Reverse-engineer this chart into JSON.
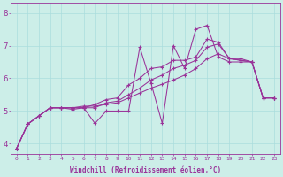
{
  "background_color": "#cceee8",
  "grid_color": "#aadddd",
  "line_color": "#993399",
  "xlabel": "Windchill (Refroidissement éolien,°C)",
  "xlabel_color": "#993399",
  "tick_color": "#993399",
  "xlim": [
    -0.5,
    23.5
  ],
  "ylim": [
    3.7,
    8.3
  ],
  "yticks": [
    4,
    5,
    6,
    7,
    8
  ],
  "xticks": [
    0,
    1,
    2,
    3,
    4,
    5,
    6,
    7,
    8,
    9,
    10,
    11,
    12,
    13,
    14,
    15,
    16,
    17,
    18,
    19,
    20,
    21,
    22,
    23
  ],
  "series": [
    {
      "x": [
        0,
        1,
        2,
        3,
        4,
        5,
        6,
        7,
        8,
        9,
        10,
        11,
        12,
        13,
        14,
        15,
        16,
        17,
        18,
        19,
        20,
        21,
        22,
        23
      ],
      "y": [
        3.85,
        4.6,
        4.85,
        5.1,
        5.1,
        5.05,
        5.1,
        4.62,
        5.0,
        5.0,
        5.0,
        6.95,
        5.85,
        4.62,
        7.0,
        6.3,
        7.5,
        7.62,
        6.65,
        6.5,
        6.5,
        6.5,
        5.4,
        5.4
      ]
    },
    {
      "x": [
        0,
        1,
        2,
        3,
        4,
        5,
        6,
        7,
        8,
        9,
        10,
        11,
        12,
        13,
        14,
        15,
        16,
        17,
        18,
        19,
        20,
        21,
        22,
        23
      ],
      "y": [
        3.85,
        4.6,
        4.85,
        5.1,
        5.1,
        5.1,
        5.1,
        5.2,
        5.35,
        5.4,
        5.8,
        6.0,
        6.3,
        6.35,
        6.55,
        6.55,
        6.65,
        7.2,
        7.1,
        6.6,
        6.6,
        6.5,
        5.4,
        5.4
      ]
    },
    {
      "x": [
        0,
        1,
        2,
        3,
        4,
        5,
        6,
        7,
        8,
        9,
        10,
        11,
        12,
        13,
        14,
        15,
        16,
        17,
        18,
        19,
        20,
        21,
        22,
        23
      ],
      "y": [
        3.85,
        4.6,
        4.85,
        5.1,
        5.1,
        5.1,
        5.1,
        5.1,
        5.25,
        5.3,
        5.5,
        5.7,
        5.95,
        6.1,
        6.3,
        6.4,
        6.55,
        6.95,
        7.05,
        6.6,
        6.55,
        6.5,
        5.4,
        5.4
      ]
    },
    {
      "x": [
        0,
        1,
        2,
        3,
        4,
        5,
        6,
        7,
        8,
        9,
        10,
        11,
        12,
        13,
        14,
        15,
        16,
        17,
        18,
        19,
        20,
        21,
        22,
        23
      ],
      "y": [
        3.85,
        4.6,
        4.85,
        5.1,
        5.1,
        5.1,
        5.15,
        5.15,
        5.2,
        5.25,
        5.4,
        5.55,
        5.7,
        5.82,
        5.95,
        6.1,
        6.3,
        6.6,
        6.75,
        6.6,
        6.55,
        6.5,
        5.4,
        5.4
      ]
    }
  ]
}
